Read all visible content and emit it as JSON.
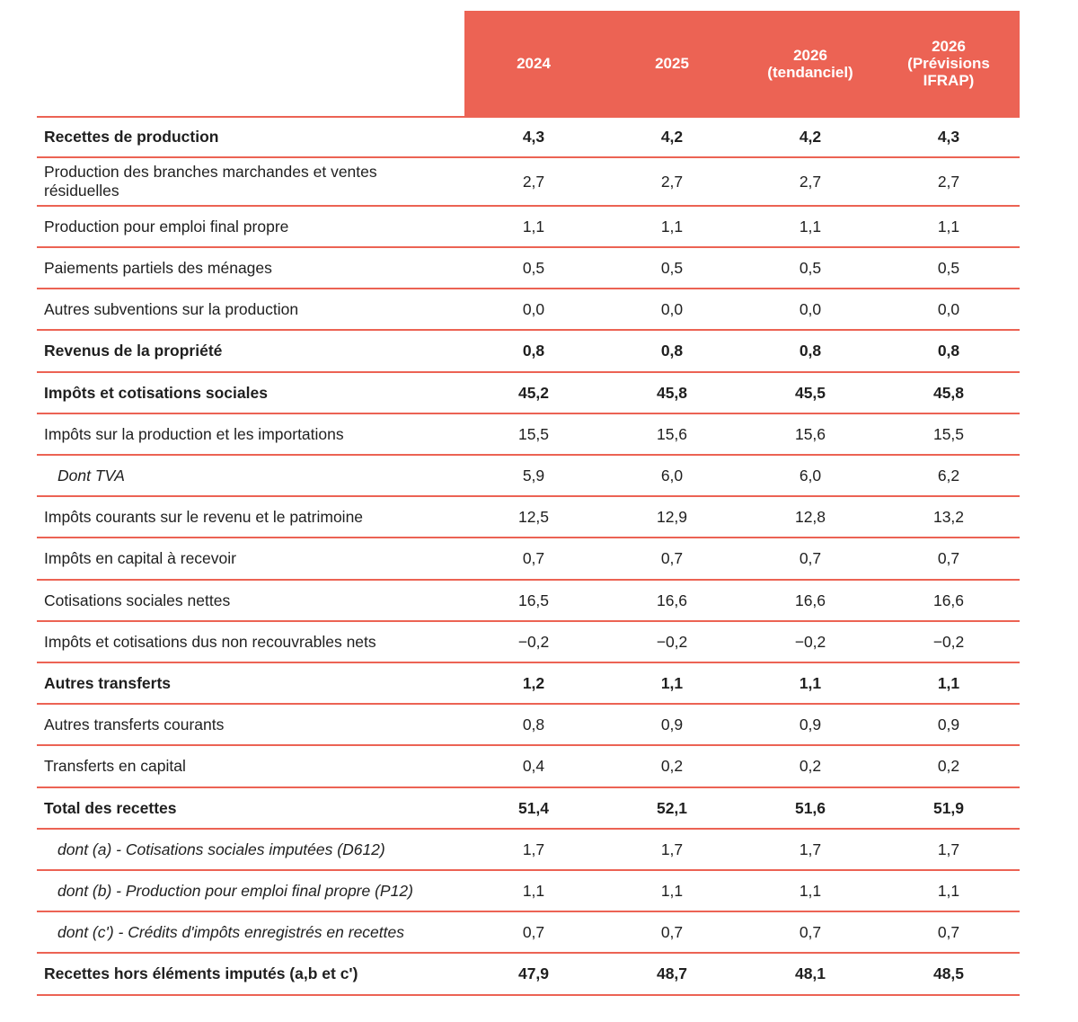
{
  "columns": [
    "2024",
    "2025",
    "2026\n(tendanciel)",
    "2026\n(Prévisions\nIFRAP)"
  ],
  "rows": [
    {
      "label": "Recettes de production",
      "bold": true,
      "indent": false,
      "values": [
        "4,3",
        "4,2",
        "4,2",
        "4,3"
      ]
    },
    {
      "label": "Production des branches marchandes et ventes résiduelles",
      "bold": false,
      "indent": false,
      "values": [
        "2,7",
        "2,7",
        "2,7",
        "2,7"
      ]
    },
    {
      "label": "Production pour emploi final propre",
      "bold": false,
      "indent": false,
      "values": [
        "1,1",
        "1,1",
        "1,1",
        "1,1"
      ]
    },
    {
      "label": "Paiements partiels des ménages",
      "bold": false,
      "indent": false,
      "values": [
        "0,5",
        "0,5",
        "0,5",
        "0,5"
      ]
    },
    {
      "label": "Autres subventions sur la production",
      "bold": false,
      "indent": false,
      "values": [
        "0,0",
        "0,0",
        "0,0",
        "0,0"
      ]
    },
    {
      "label": "Revenus de la propriété",
      "bold": true,
      "indent": false,
      "values": [
        "0,8",
        "0,8",
        "0,8",
        "0,8"
      ]
    },
    {
      "label": "Impôts et cotisations sociales",
      "bold": true,
      "indent": false,
      "values": [
        "45,2",
        "45,8",
        "45,5",
        "45,8"
      ]
    },
    {
      "label": "Impôts sur la production et les importations",
      "bold": false,
      "indent": false,
      "values": [
        "15,5",
        "15,6",
        "15,6",
        "15,5"
      ]
    },
    {
      "label": "Dont TVA",
      "bold": false,
      "indent": true,
      "values": [
        "5,9",
        "6,0",
        "6,0",
        "6,2"
      ]
    },
    {
      "label": "Impôts courants sur le revenu et le patrimoine",
      "bold": false,
      "indent": false,
      "values": [
        "12,5",
        "12,9",
        "12,8",
        "13,2"
      ]
    },
    {
      "label": "Impôts en capital à recevoir",
      "bold": false,
      "indent": false,
      "values": [
        "0,7",
        "0,7",
        "0,7",
        "0,7"
      ]
    },
    {
      "label": "Cotisations sociales nettes",
      "bold": false,
      "indent": false,
      "values": [
        "16,5",
        "16,6",
        "16,6",
        "16,6"
      ]
    },
    {
      "label": "Impôts et cotisations dus non recouvrables nets",
      "bold": false,
      "indent": false,
      "values": [
        "−0,2",
        "−0,2",
        "−0,2",
        "−0,2"
      ]
    },
    {
      "label": "Autres transferts",
      "bold": true,
      "indent": false,
      "values": [
        "1,2",
        "1,1",
        "1,1",
        "1,1"
      ]
    },
    {
      "label": "Autres transferts courants",
      "bold": false,
      "indent": false,
      "values": [
        "0,8",
        "0,9",
        "0,9",
        "0,9"
      ]
    },
    {
      "label": "Transferts en capital",
      "bold": false,
      "indent": false,
      "values": [
        "0,4",
        "0,2",
        "0,2",
        "0,2"
      ]
    },
    {
      "label": "Total des recettes",
      "bold": true,
      "indent": false,
      "values": [
        "51,4",
        "52,1",
        "51,6",
        "51,9"
      ]
    },
    {
      "label": "dont (a) - Cotisations sociales imputées (D612)",
      "bold": false,
      "indent": true,
      "values": [
        "1,7",
        "1,7",
        "1,7",
        "1,7"
      ]
    },
    {
      "label": "dont (b) - Production pour emploi final propre (P12)",
      "bold": false,
      "indent": true,
      "values": [
        "1,1",
        "1,1",
        "1,1",
        "1,1"
      ]
    },
    {
      "label": "dont (c') - Crédits d'impôts enregistrés en recettes",
      "bold": false,
      "indent": true,
      "values": [
        "0,7",
        "0,7",
        "0,7",
        "0,7"
      ]
    },
    {
      "label": "Recettes hors éléments imputés (a,b et c')",
      "bold": true,
      "indent": false,
      "values": [
        "47,9",
        "48,7",
        "48,1",
        "48,5"
      ]
    }
  ],
  "colors": {
    "accent": "#ec6354",
    "header_text": "#ffffff"
  }
}
